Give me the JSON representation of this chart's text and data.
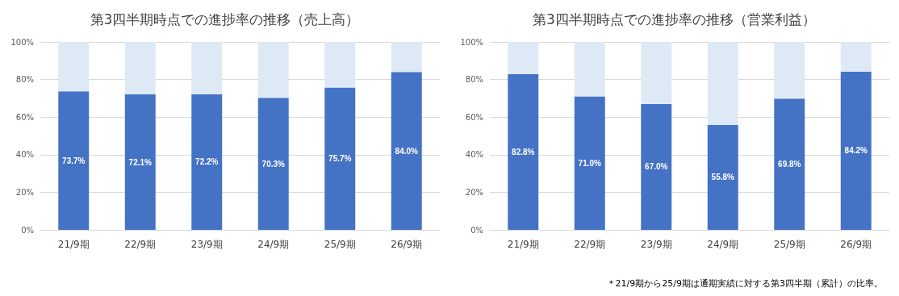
{
  "chart_data": [
    {
      "type": "bar",
      "title": "第3四半期時点での進捗率の推移（売上高）",
      "categories": [
        "21/9期",
        "22/9期",
        "23/9期",
        "24/9期",
        "25/9期",
        "26/9期"
      ],
      "stacked": true,
      "ylim": [
        0,
        100
      ],
      "yticks": [
        {
          "value": 0,
          "label": "0%"
        },
        {
          "value": 20,
          "label": "20%"
        },
        {
          "value": 40,
          "label": "40%"
        },
        {
          "value": 60,
          "label": "60%"
        },
        {
          "value": 80,
          "label": "80%"
        },
        {
          "value": 100,
          "label": "100%"
        }
      ],
      "grid": "y",
      "series": [
        {
          "color": "#4472c4",
          "values": [
            73.7,
            72.1,
            72.2,
            70.3,
            75.7,
            84.0
          ],
          "value_labels": [
            "73.7%",
            "72.1%",
            "72.2%",
            "70.3%",
            "75.7%",
            "84.0%"
          ]
        },
        {
          "color": "#dee9f6",
          "values": [
            26.3,
            27.9,
            27.8,
            29.7,
            24.3,
            16.0
          ]
        }
      ]
    },
    {
      "type": "bar",
      "title": "第3四半期時点での進捗率の推移（営業利益）",
      "categories": [
        "21/9期",
        "22/9期",
        "23/9期",
        "24/9期",
        "25/9期",
        "26/9期"
      ],
      "stacked": true,
      "ylim": [
        0,
        100
      ],
      "yticks": [
        {
          "value": 0,
          "label": "0%"
        },
        {
          "value": 20,
          "label": "20%"
        },
        {
          "value": 40,
          "label": "40%"
        },
        {
          "value": 60,
          "label": "60%"
        },
        {
          "value": 80,
          "label": "80%"
        },
        {
          "value": 100,
          "label": "100%"
        }
      ],
      "grid": "y",
      "annotations": [
        "＊21/9期から25/9期は通期実績に対する第3四半期（累計）の比率。"
      ],
      "series": [
        {
          "color": "#4472c4",
          "values": [
            82.8,
            71.0,
            67.0,
            55.8,
            69.8,
            84.2
          ],
          "value_labels": [
            "82.8%",
            "71.0%",
            "67.0%",
            "55.8%",
            "69.8%",
            "84.2%"
          ]
        },
        {
          "color": "#dee9f6",
          "values": [
            17.2,
            29.0,
            33.0,
            44.2,
            30.2,
            15.8
          ]
        }
      ]
    }
  ]
}
